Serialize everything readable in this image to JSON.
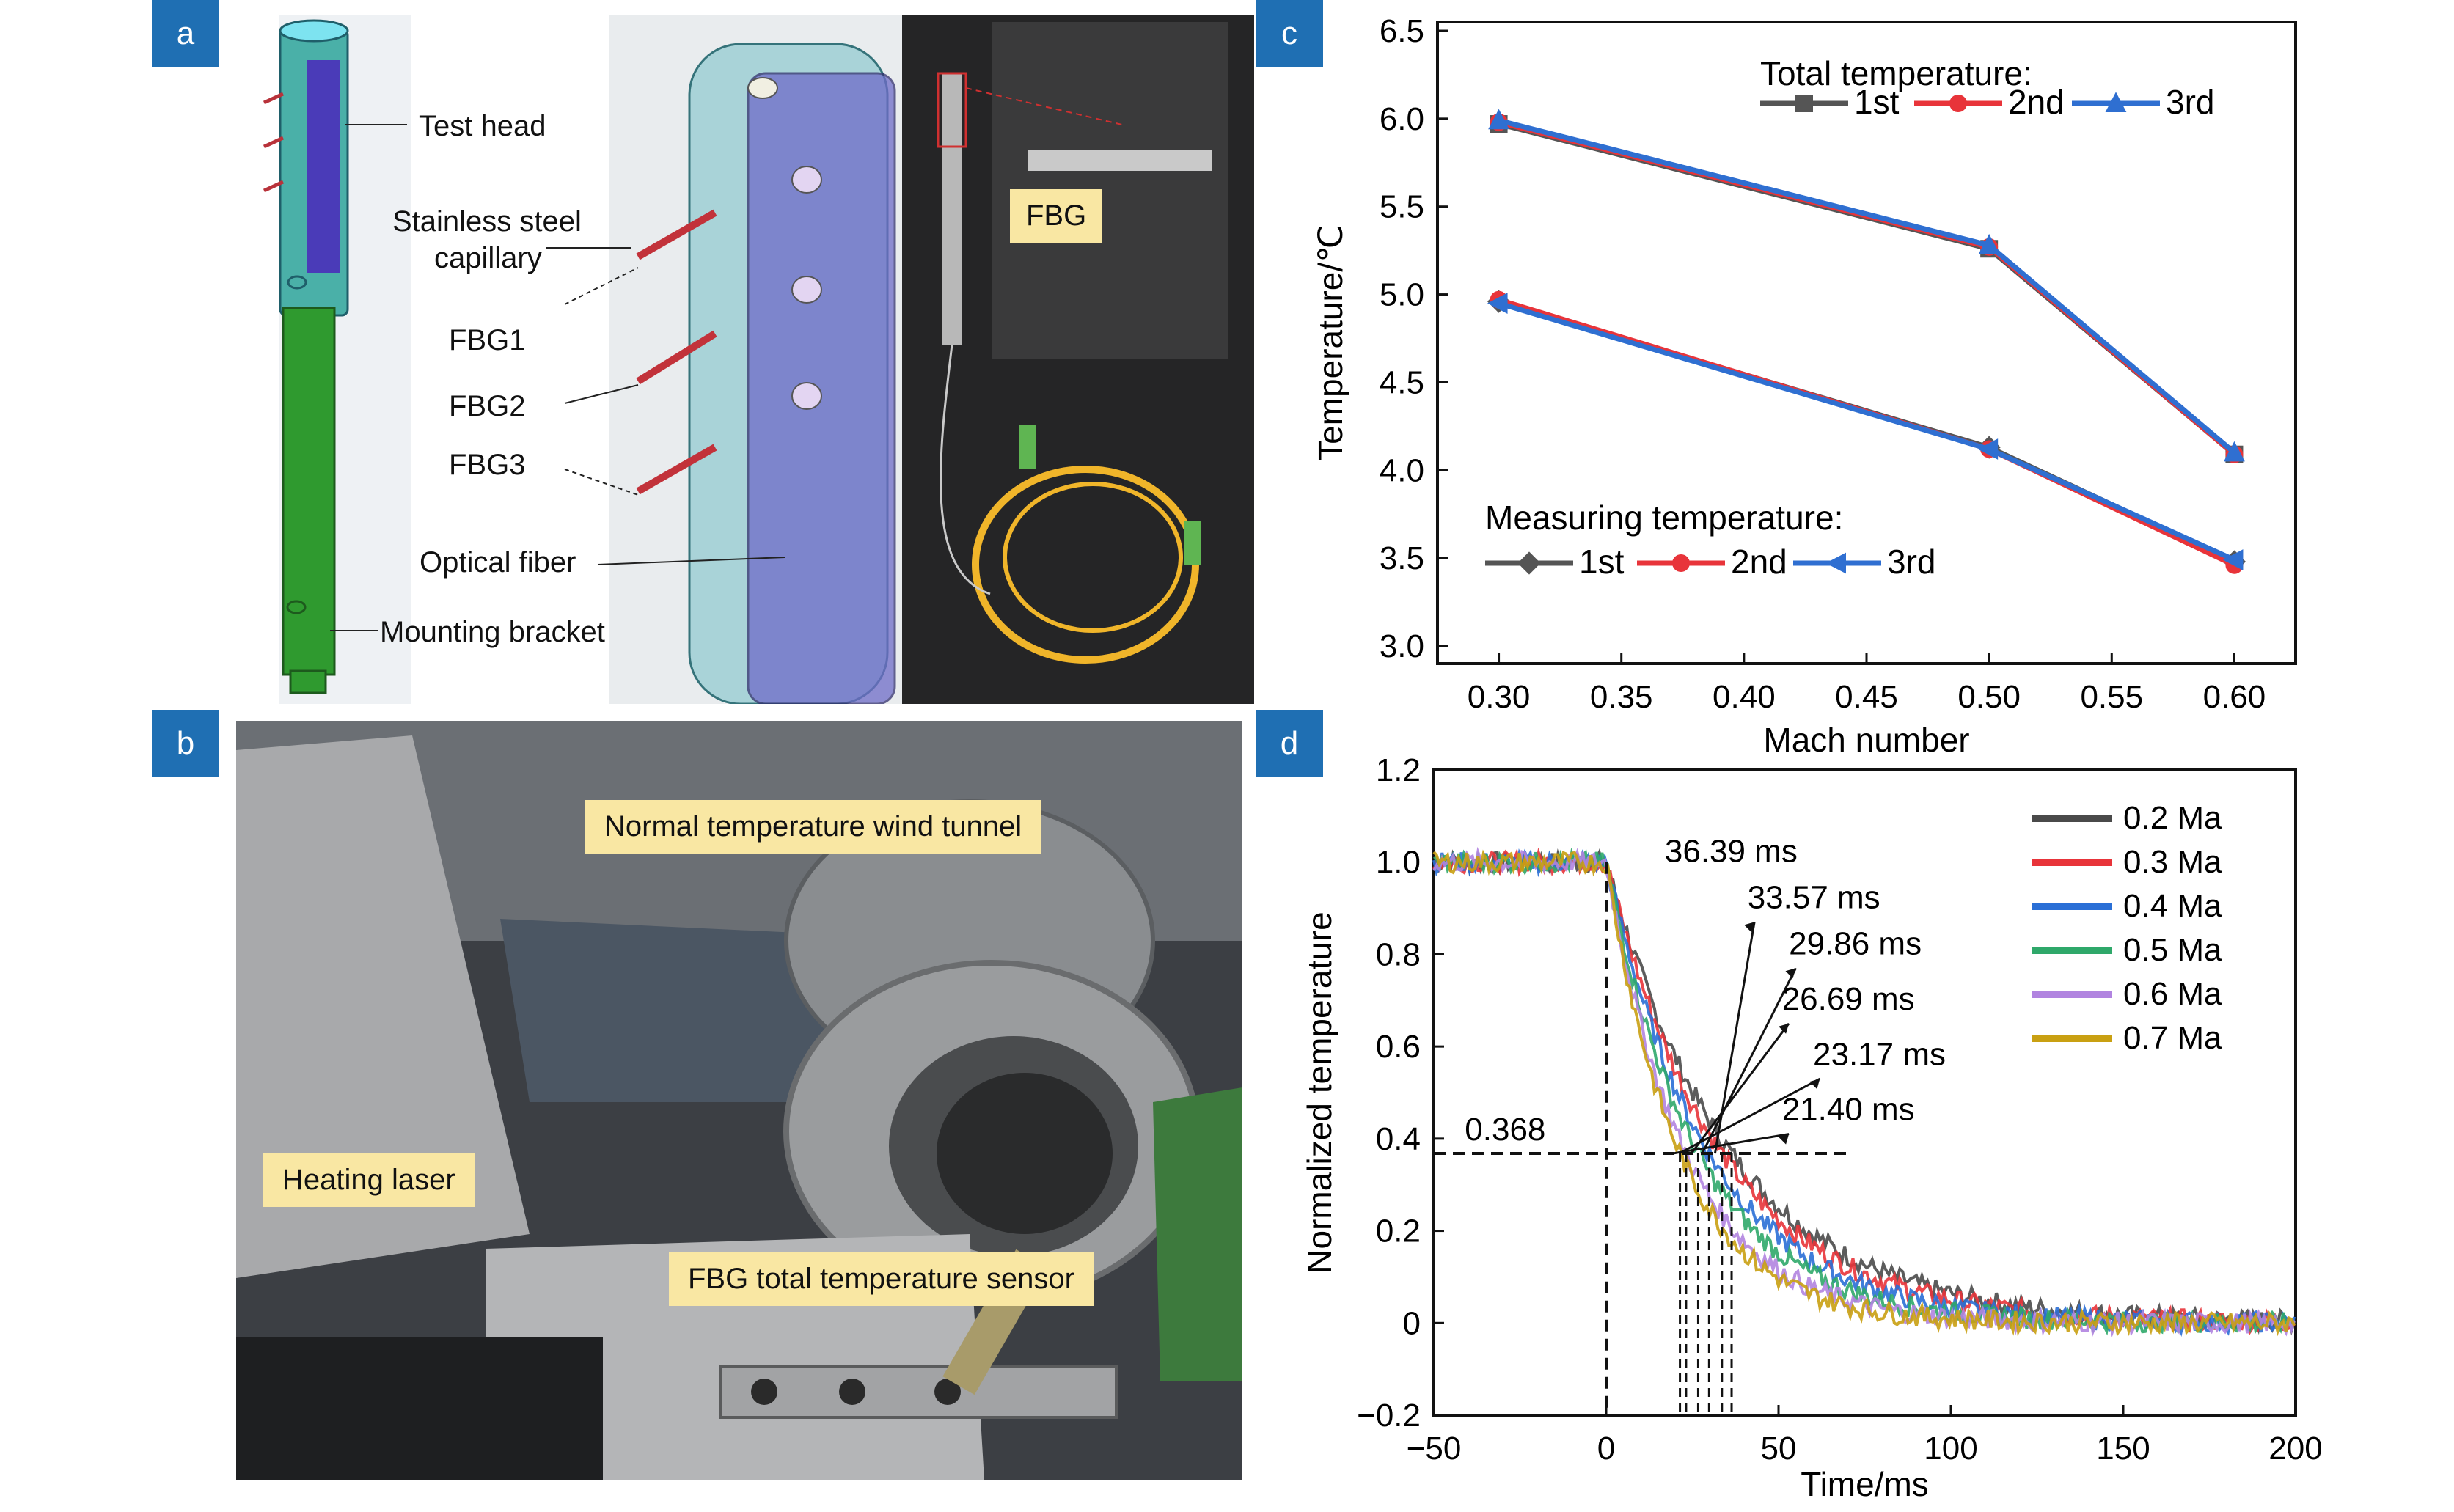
{
  "panels": {
    "a": "a",
    "b": "b",
    "c": "c",
    "d": "d"
  },
  "panel_a": {
    "labels": [
      "Test head",
      "Stainless steel",
      "capillary",
      "FBG1",
      "FBG2",
      "FBG3",
      "Optical fiber",
      "Mounting bracket"
    ],
    "fbg_tag": "FBG"
  },
  "panel_b": {
    "callouts": [
      "Normal temperature wind tunnel",
      "Heating laser",
      "FBG total temperature sensor"
    ]
  },
  "chart_data": [
    {
      "type": "line",
      "xlabel": "Mach number",
      "ylabel": "Temperature/℃",
      "xlim": [
        0.275,
        0.625
      ],
      "ylim": [
        2.9,
        6.55
      ],
      "xticks": [
        "0.30",
        "0.35",
        "0.40",
        "0.45",
        "0.50",
        "0.55",
        "0.60"
      ],
      "yticks": [
        "3.0",
        "3.5",
        "4.0",
        "4.5",
        "5.0",
        "5.5",
        "6.0",
        "6.5"
      ],
      "legend_titles": [
        "Total temperature:",
        "Measuring temperature:"
      ],
      "x": [
        0.3,
        0.5,
        0.6
      ],
      "series": [
        {
          "group": "Total temperature",
          "name": "1st",
          "values": [
            5.97,
            5.26,
            4.09
          ],
          "color": "#555555",
          "marker": "square"
        },
        {
          "group": "Total temperature",
          "name": "2nd",
          "values": [
            5.98,
            5.27,
            4.09
          ],
          "color": "#e8343a",
          "marker": "circle"
        },
        {
          "group": "Total temperature",
          "name": "3rd",
          "values": [
            5.99,
            5.28,
            4.1
          ],
          "color": "#2f6fd1",
          "marker": "triangle-up"
        },
        {
          "group": "Measuring temperature",
          "name": "1st",
          "values": [
            4.96,
            4.13,
            3.48
          ],
          "color": "#555555",
          "marker": "diamond"
        },
        {
          "group": "Measuring temperature",
          "name": "2nd",
          "values": [
            4.97,
            4.12,
            3.46
          ],
          "color": "#e8343a",
          "marker": "circle"
        },
        {
          "group": "Measuring temperature",
          "name": "3rd",
          "values": [
            4.95,
            4.12,
            3.49
          ],
          "color": "#2f6fd1",
          "marker": "triangle-left"
        }
      ]
    },
    {
      "type": "line",
      "xlabel": "Time/ms",
      "ylabel": "Normalized temperature",
      "xlim": [
        -50,
        200
      ],
      "ylim": [
        -0.2,
        1.2
      ],
      "xticks": [
        "−50",
        "0",
        "50",
        "100",
        "150",
        "200"
      ],
      "yticks": [
        "−0.2",
        "0",
        "0.2",
        "0.4",
        "0.6",
        "0.8",
        "1.0",
        "1.2"
      ],
      "threshold": {
        "value": 0.368,
        "label": "0.368"
      },
      "annotations": [
        "36.39 ms",
        "33.57 ms",
        "29.86 ms",
        "26.69 ms",
        "23.17 ms",
        "21.40 ms"
      ],
      "series": [
        {
          "name": "0.2 Ma",
          "tau": 36.39,
          "color": "#4a4a4a"
        },
        {
          "name": "0.3 Ma",
          "tau": 33.57,
          "color": "#e8343a"
        },
        {
          "name": "0.4 Ma",
          "tau": 29.86,
          "color": "#2a6fd6"
        },
        {
          "name": "0.5 Ma",
          "tau": 26.69,
          "color": "#2fa86a"
        },
        {
          "name": "0.6 Ma",
          "tau": 23.17,
          "color": "#b184e0"
        },
        {
          "name": "0.7 Ma",
          "tau": 21.4,
          "color": "#c9a012"
        }
      ]
    }
  ]
}
